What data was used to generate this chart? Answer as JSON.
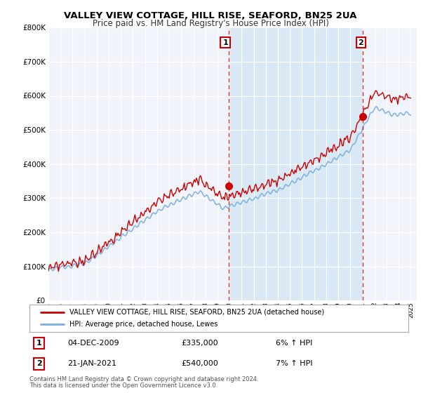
{
  "title": "VALLEY VIEW COTTAGE, HILL RISE, SEAFORD, BN25 2UA",
  "subtitle": "Price paid vs. HM Land Registry's House Price Index (HPI)",
  "ylim": [
    0,
    800000
  ],
  "yticks": [
    0,
    100000,
    200000,
    300000,
    400000,
    500000,
    600000,
    700000,
    800000
  ],
  "x_start_year": 1995,
  "x_end_year": 2025,
  "red_line_color": "#cc0000",
  "blue_line_color": "#7aadde",
  "dashed_red_color": "#cc0000",
  "shade_color": "#d8e8f5",
  "marker1_date": 2009.92,
  "marker1_value": 335000,
  "marker2_date": 2021.05,
  "marker2_value": 540000,
  "annotation1_label": "1",
  "annotation1_date": "04-DEC-2009",
  "annotation1_price": "£335,000",
  "annotation1_hpi": "6% ↑ HPI",
  "annotation2_label": "2",
  "annotation2_date": "21-JAN-2021",
  "annotation2_price": "£540,000",
  "annotation2_hpi": "7% ↑ HPI",
  "legend_red_label": "VALLEY VIEW COTTAGE, HILL RISE, SEAFORD, BN25 2UA (detached house)",
  "legend_blue_label": "HPI: Average price, detached house, Lewes",
  "footer_line1": "Contains HM Land Registry data © Crown copyright and database right 2024.",
  "footer_line2": "This data is licensed under the Open Government Licence v3.0.",
  "bg_color": "#ffffff",
  "plot_bg_color": "#f0f4fa"
}
